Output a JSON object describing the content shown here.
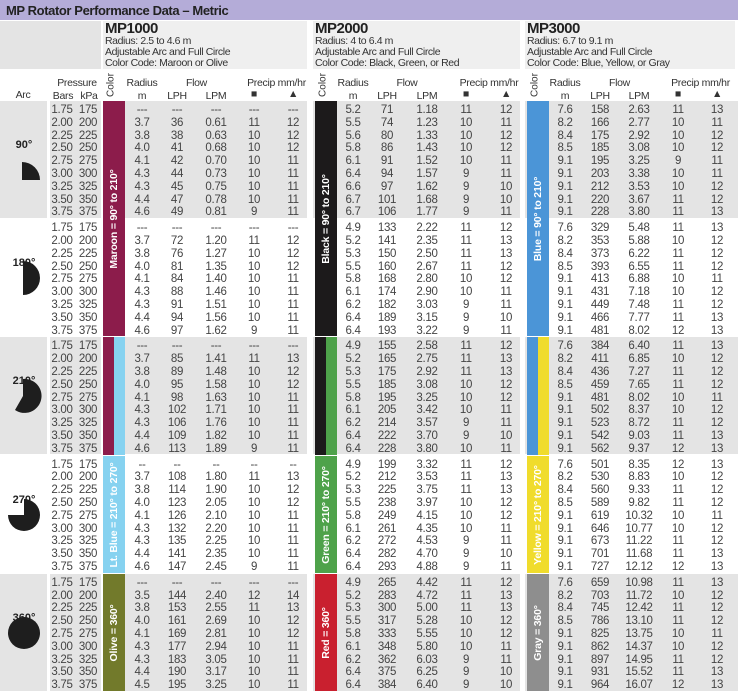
{
  "title": "MP Rotator Performance Data – Metric",
  "models": [
    {
      "name": "MP1000",
      "radius": "Radius: 2.5 to 4.6 m",
      "arc_text": "Adjustable Arc and Full Circle",
      "color_code": "Color Code: Maroon or Olive"
    },
    {
      "name": "MP2000",
      "radius": "Radius: 4 to 6.4 m",
      "arc_text": "Adjustable Arc and Full Circle",
      "color_code": "Color Code: Black, Green, or Red"
    },
    {
      "name": "MP3000",
      "radius": "Radius: 6.7 to 9.1 m",
      "arc_text": "Adjustable Arc and Full Circle",
      "color_code": "Color Code: Blue, Yellow, or Gray"
    }
  ],
  "column_headers": {
    "arc": "Arc",
    "pressure": "Pressure",
    "bars": "Bars",
    "kpa": "kPa",
    "color": "Color",
    "radius": "Radius",
    "radius_unit": "m",
    "flow": "Flow",
    "lph": "LPH",
    "lpm": "LPM",
    "precip": "Precip mm/hr",
    "square": "■",
    "triangle": "▲"
  },
  "pressures": [
    [
      "1.75",
      "175"
    ],
    [
      "2.00",
      "200"
    ],
    [
      "2.25",
      "225"
    ],
    [
      "2.50",
      "250"
    ],
    [
      "2.75",
      "275"
    ],
    [
      "3.00",
      "300"
    ],
    [
      "3.25",
      "325"
    ],
    [
      "3.50",
      "350"
    ],
    [
      "3.75",
      "375"
    ]
  ],
  "arcs": [
    {
      "label": "90°",
      "icon": "quarter-circle-icon",
      "data": [
        [
          [
            "---",
            "---",
            "---",
            "---",
            "---"
          ],
          [
            "3.7",
            "36",
            "0.61",
            "11",
            "12"
          ],
          [
            "3.8",
            "38",
            "0.63",
            "10",
            "12"
          ],
          [
            "4.0",
            "41",
            "0.68",
            "10",
            "12"
          ],
          [
            "4.1",
            "42",
            "0.70",
            "10",
            "11"
          ],
          [
            "4.3",
            "44",
            "0.73",
            "10",
            "11"
          ],
          [
            "4.3",
            "45",
            "0.75",
            "10",
            "11"
          ],
          [
            "4.4",
            "47",
            "0.78",
            "10",
            "11"
          ],
          [
            "4.6",
            "49",
            "0.81",
            "9",
            "11"
          ]
        ],
        [
          [
            "5.2",
            "71",
            "1.18",
            "11",
            "12"
          ],
          [
            "5.5",
            "74",
            "1.23",
            "10",
            "11"
          ],
          [
            "5.6",
            "80",
            "1.33",
            "10",
            "12"
          ],
          [
            "5.8",
            "86",
            "1.43",
            "10",
            "12"
          ],
          [
            "6.1",
            "91",
            "1.52",
            "10",
            "11"
          ],
          [
            "6.4",
            "94",
            "1.57",
            "9",
            "11"
          ],
          [
            "6.6",
            "97",
            "1.62",
            "9",
            "10"
          ],
          [
            "6.7",
            "101",
            "1.68",
            "9",
            "10"
          ],
          [
            "6.7",
            "106",
            "1.77",
            "9",
            "11"
          ]
        ],
        [
          [
            "7.6",
            "158",
            "2.63",
            "11",
            "13"
          ],
          [
            "8.2",
            "166",
            "2.77",
            "10",
            "11"
          ],
          [
            "8.4",
            "175",
            "2.92",
            "10",
            "12"
          ],
          [
            "8.5",
            "185",
            "3.08",
            "10",
            "12"
          ],
          [
            "9.1",
            "195",
            "3.25",
            "9",
            "11"
          ],
          [
            "9.1",
            "203",
            "3.38",
            "10",
            "11"
          ],
          [
            "9.1",
            "212",
            "3.53",
            "10",
            "12"
          ],
          [
            "9.1",
            "220",
            "3.67",
            "11",
            "12"
          ],
          [
            "9.1",
            "228",
            "3.80",
            "11",
            "13"
          ]
        ]
      ]
    },
    {
      "label": "180°",
      "icon": "half-circle-icon",
      "data": [
        [
          [
            "---",
            "---",
            "---",
            "---",
            "---"
          ],
          [
            "3.7",
            "72",
            "1.20",
            "11",
            "12"
          ],
          [
            "3.8",
            "76",
            "1.27",
            "10",
            "12"
          ],
          [
            "4.0",
            "81",
            "1.35",
            "10",
            "12"
          ],
          [
            "4.1",
            "84",
            "1.40",
            "10",
            "11"
          ],
          [
            "4.3",
            "88",
            "1.46",
            "10",
            "11"
          ],
          [
            "4.3",
            "91",
            "1.51",
            "10",
            "11"
          ],
          [
            "4.4",
            "94",
            "1.56",
            "10",
            "11"
          ],
          [
            "4.6",
            "97",
            "1.62",
            "9",
            "11"
          ]
        ],
        [
          [
            "4.9",
            "133",
            "2.22",
            "11",
            "12"
          ],
          [
            "5.2",
            "141",
            "2.35",
            "11",
            "13"
          ],
          [
            "5.3",
            "150",
            "2.50",
            "11",
            "13"
          ],
          [
            "5.5",
            "160",
            "2.67",
            "11",
            "12"
          ],
          [
            "5.8",
            "168",
            "2.80",
            "10",
            "12"
          ],
          [
            "6.1",
            "174",
            "2.90",
            "10",
            "11"
          ],
          [
            "6.2",
            "182",
            "3.03",
            "9",
            "11"
          ],
          [
            "6.4",
            "189",
            "3.15",
            "9",
            "10"
          ],
          [
            "6.4",
            "193",
            "3.22",
            "9",
            "11"
          ]
        ],
        [
          [
            "7.6",
            "329",
            "5.48",
            "11",
            "13"
          ],
          [
            "8.2",
            "353",
            "5.88",
            "10",
            "12"
          ],
          [
            "8.4",
            "373",
            "6.22",
            "11",
            "12"
          ],
          [
            "8.5",
            "393",
            "6.55",
            "11",
            "12"
          ],
          [
            "9.1",
            "413",
            "6.88",
            "10",
            "11"
          ],
          [
            "9.1",
            "431",
            "7.18",
            "10",
            "12"
          ],
          [
            "9.1",
            "449",
            "7.48",
            "11",
            "12"
          ],
          [
            "9.1",
            "466",
            "7.77",
            "11",
            "13"
          ],
          [
            "9.1",
            "481",
            "8.02",
            "12",
            "13"
          ]
        ]
      ]
    },
    {
      "label": "210°",
      "icon": "210-degree-arc-icon",
      "data": [
        [
          [
            "---",
            "---",
            "---",
            "---",
            "---"
          ],
          [
            "3.7",
            "85",
            "1.41",
            "11",
            "13"
          ],
          [
            "3.8",
            "89",
            "1.48",
            "10",
            "12"
          ],
          [
            "4.0",
            "95",
            "1.58",
            "10",
            "12"
          ],
          [
            "4.1",
            "98",
            "1.63",
            "10",
            "11"
          ],
          [
            "4.3",
            "102",
            "1.71",
            "10",
            "11"
          ],
          [
            "4.3",
            "106",
            "1.76",
            "10",
            "11"
          ],
          [
            "4.4",
            "109",
            "1.82",
            "10",
            "11"
          ],
          [
            "4.6",
            "113",
            "1.89",
            "9",
            "11"
          ]
        ],
        [
          [
            "4.9",
            "155",
            "2.58",
            "11",
            "12"
          ],
          [
            "5.2",
            "165",
            "2.75",
            "11",
            "13"
          ],
          [
            "5.3",
            "175",
            "2.92",
            "11",
            "13"
          ],
          [
            "5.5",
            "185",
            "3.08",
            "10",
            "12"
          ],
          [
            "5.8",
            "195",
            "3.25",
            "10",
            "12"
          ],
          [
            "6.1",
            "205",
            "3.42",
            "10",
            "11"
          ],
          [
            "6.2",
            "214",
            "3.57",
            "9",
            "11"
          ],
          [
            "6.4",
            "222",
            "3.70",
            "9",
            "10"
          ],
          [
            "6.4",
            "228",
            "3.80",
            "10",
            "11"
          ]
        ],
        [
          [
            "7.6",
            "384",
            "6.40",
            "11",
            "13"
          ],
          [
            "8.2",
            "411",
            "6.85",
            "10",
            "12"
          ],
          [
            "8.4",
            "436",
            "7.27",
            "11",
            "12"
          ],
          [
            "8.5",
            "459",
            "7.65",
            "11",
            "12"
          ],
          [
            "9.1",
            "481",
            "8.02",
            "10",
            "11"
          ],
          [
            "9.1",
            "502",
            "8.37",
            "10",
            "12"
          ],
          [
            "9.1",
            "523",
            "8.72",
            "11",
            "12"
          ],
          [
            "9.1",
            "542",
            "9.03",
            "11",
            "13"
          ],
          [
            "9.1",
            "562",
            "9.37",
            "12",
            "13"
          ]
        ]
      ]
    },
    {
      "label": "270°",
      "icon": "three-quarter-circle-icon",
      "data": [
        [
          [
            "--",
            "--",
            "--",
            "--",
            "--"
          ],
          [
            "3.7",
            "108",
            "1.80",
            "11",
            "13"
          ],
          [
            "3.8",
            "114",
            "1.90",
            "10",
            "12"
          ],
          [
            "4.0",
            "123",
            "2.05",
            "10",
            "12"
          ],
          [
            "4.1",
            "126",
            "2.10",
            "10",
            "11"
          ],
          [
            "4.3",
            "132",
            "2.20",
            "10",
            "11"
          ],
          [
            "4.3",
            "135",
            "2.25",
            "10",
            "11"
          ],
          [
            "4.4",
            "141",
            "2.35",
            "10",
            "11"
          ],
          [
            "4.6",
            "147",
            "2.45",
            "9",
            "11"
          ]
        ],
        [
          [
            "4.9",
            "199",
            "3.32",
            "11",
            "12"
          ],
          [
            "5.2",
            "212",
            "3.53",
            "11",
            "13"
          ],
          [
            "5.3",
            "225",
            "3.75",
            "11",
            "13"
          ],
          [
            "5.5",
            "238",
            "3.97",
            "10",
            "12"
          ],
          [
            "5.8",
            "249",
            "4.15",
            "10",
            "12"
          ],
          [
            "6.1",
            "261",
            "4.35",
            "10",
            "11"
          ],
          [
            "6.2",
            "272",
            "4.53",
            "9",
            "11"
          ],
          [
            "6.4",
            "282",
            "4.70",
            "9",
            "10"
          ],
          [
            "6.4",
            "293",
            "4.88",
            "9",
            "11"
          ]
        ],
        [
          [
            "7.6",
            "501",
            "8.35",
            "12",
            "13"
          ],
          [
            "8.2",
            "530",
            "8.83",
            "10",
            "12"
          ],
          [
            "8.4",
            "560",
            "9.33",
            "11",
            "12"
          ],
          [
            "8.5",
            "589",
            "9.82",
            "11",
            "12"
          ],
          [
            "9.1",
            "619",
            "10.32",
            "10",
            "11"
          ],
          [
            "9.1",
            "646",
            "10.77",
            "10",
            "12"
          ],
          [
            "9.1",
            "673",
            "11.22",
            "11",
            "12"
          ],
          [
            "9.1",
            "701",
            "11.68",
            "11",
            "13"
          ],
          [
            "9.1",
            "727",
            "12.12",
            "12",
            "13"
          ]
        ]
      ]
    },
    {
      "label": "360°",
      "icon": "full-circle-icon",
      "data": [
        [
          [
            "---",
            "---",
            "---",
            "---",
            "---"
          ],
          [
            "3.5",
            "144",
            "2.40",
            "12",
            "14"
          ],
          [
            "3.8",
            "153",
            "2.55",
            "11",
            "13"
          ],
          [
            "4.0",
            "161",
            "2.69",
            "10",
            "12"
          ],
          [
            "4.1",
            "169",
            "2.81",
            "10",
            "12"
          ],
          [
            "4.3",
            "177",
            "2.94",
            "10",
            "11"
          ],
          [
            "4.3",
            "183",
            "3.05",
            "10",
            "11"
          ],
          [
            "4.4",
            "190",
            "3.17",
            "10",
            "11"
          ],
          [
            "4.5",
            "195",
            "3.25",
            "10",
            "11"
          ]
        ],
        [
          [
            "4.9",
            "265",
            "4.42",
            "11",
            "12"
          ],
          [
            "5.2",
            "283",
            "4.72",
            "11",
            "13"
          ],
          [
            "5.3",
            "300",
            "5.00",
            "11",
            "13"
          ],
          [
            "5.5",
            "317",
            "5.28",
            "10",
            "12"
          ],
          [
            "5.8",
            "333",
            "5.55",
            "10",
            "12"
          ],
          [
            "6.1",
            "348",
            "5.80",
            "10",
            "11"
          ],
          [
            "6.2",
            "362",
            "6.03",
            "9",
            "11"
          ],
          [
            "6.4",
            "375",
            "6.25",
            "9",
            "10"
          ],
          [
            "6.4",
            "384",
            "6.40",
            "9",
            "10"
          ]
        ],
        [
          [
            "7.6",
            "659",
            "10.98",
            "11",
            "13"
          ],
          [
            "8.2",
            "703",
            "11.72",
            "10",
            "12"
          ],
          [
            "8.4",
            "745",
            "12.42",
            "11",
            "12"
          ],
          [
            "8.5",
            "786",
            "13.10",
            "11",
            "12"
          ],
          [
            "9.1",
            "825",
            "13.75",
            "10",
            "11"
          ],
          [
            "9.1",
            "862",
            "14.37",
            "10",
            "12"
          ],
          [
            "9.1",
            "897",
            "14.95",
            "11",
            "12"
          ],
          [
            "9.1",
            "931",
            "15.52",
            "11",
            "13"
          ],
          [
            "9.1",
            "964",
            "16.07",
            "12",
            "13"
          ]
        ]
      ]
    }
  ],
  "color_strips": [
    {
      "model": "MP1000",
      "label": "Maroon = 90° to 210°",
      "color": "#8c1c4b",
      "from_arc": "90°",
      "to_arc": "210°"
    },
    {
      "model": "MP1000",
      "label": "Lt. Blue = 210° to 270°",
      "color": "#86d2f0",
      "from_arc": "210°",
      "to_arc": "270°"
    },
    {
      "model": "MP1000",
      "label": "Olive = 360°",
      "color": "#727a2b",
      "from_arc": "360°",
      "to_arc": "360°"
    },
    {
      "model": "MP2000",
      "label": "Black = 90° to 210°",
      "color": "#1c1a1b",
      "from_arc": "90°",
      "to_arc": "210°"
    },
    {
      "model": "MP2000",
      "label": "Green = 210° to 270°",
      "color": "#4ea24a",
      "from_arc": "210°",
      "to_arc": "270°"
    },
    {
      "model": "MP2000",
      "label": "Red = 360°",
      "color": "#c9202f",
      "from_arc": "360°",
      "to_arc": "360°"
    },
    {
      "model": "MP3000",
      "label": "Blue = 90° to 210°",
      "color": "#4b95d7",
      "from_arc": "90°",
      "to_arc": "210°"
    },
    {
      "model": "MP3000",
      "label": "Yellow = 210° to 270°",
      "color": "#f0dc2c",
      "from_arc": "210°",
      "to_arc": "270°"
    },
    {
      "model": "MP3000",
      "label": "Gray = 360°",
      "color": "#8e8e8e",
      "from_arc": "360°",
      "to_arc": "360°"
    }
  ],
  "colors": {
    "title_bar": "#b4acd8",
    "row_gray": "#e4e4e4",
    "row_white": "#ffffff"
  }
}
